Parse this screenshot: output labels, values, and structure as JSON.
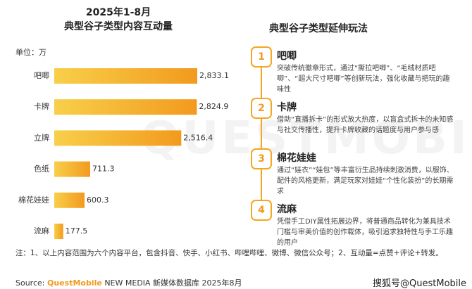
{
  "chart_data": {
    "type": "bar",
    "orientation": "horizontal",
    "title": [
      "2025年1-8月",
      "典型谷子类型内容互动量"
    ],
    "unit": "单位：万",
    "categories": [
      "吧唧",
      "卡牌",
      "立牌",
      "色纸",
      "棉花娃娃",
      "流麻"
    ],
    "values": [
      2833.1,
      2824.9,
      2516.4,
      711.3,
      600.3,
      177.5
    ],
    "value_labels": [
      "2,833.1",
      "2,824.9",
      "2,516.4",
      "711.3",
      "600.3",
      "177.5"
    ],
    "color": [
      "#f8cf4a",
      "#f29a1e"
    ]
  },
  "panel": {
    "title": "典型谷子类型延伸玩法",
    "items": [
      {
        "number": "1",
        "title": "吧唧",
        "text": "突破传统徽章形式，通过“撕拉吧唧”、“毛绒材质吧唧”、“超大尺寸吧唧”等创新玩法，强化收藏与把玩的趣味性"
      },
      {
        "number": "2",
        "title": "卡牌",
        "text": "借助“直播拆卡”的形式放大热度，以盲盒式拆卡的未知感与社交传播性，提升卡牌收藏的话题度与用户参与感"
      },
      {
        "number": "3",
        "title": "棉花娃娃",
        "text": "通过“娃衣”“娃包”等丰富衍生品持续刺激消费，以服饰、配件的风格更新，满足玩家对娃娃“个性化装扮”的长期需求"
      },
      {
        "number": "4",
        "title": "流麻",
        "text": "凭借手工DIY属性拓展边界，将普通商品转化为兼具技术门槛与审美价值的创作载体，吸引追求独特性与手工乐趣的用户"
      }
    ]
  },
  "note": "注：1、以上内容范围为六个内容平台，包含抖音、快手、小红书、哔哩哔哩、微博、微信公众号；2、互动量=点赞+评论+转发。",
  "source": {
    "label": "Source:",
    "brand": "QuestMobile",
    "rest": "NEW MEDIA 新媒体数据库 2025年8月"
  },
  "watermark": "搜狐号@QuestMobile"
}
